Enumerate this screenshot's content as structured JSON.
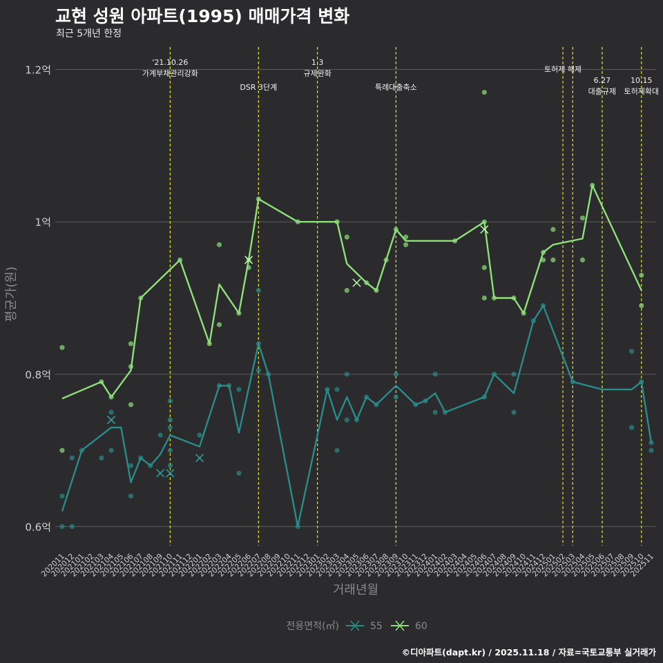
{
  "title": "교현 성원 아파트(1995) 매매가격 변화",
  "subtitle": "최근 5개년 한정",
  "caption": "©디아파트(dapt.kr) / 2025.11.18 / 자료=국토교통부 실거래가",
  "colors": {
    "background": "#2b2b2d",
    "grid": "#5c5c5c",
    "series55": "#2a8c8a",
    "series60": "#8fe07a",
    "event_line": "#d4d42a",
    "axis_text": "#cfcfcf",
    "axis_title": "#8a8a8a"
  },
  "chart_data": {
    "type": "line",
    "title": "교현 성원 아파트(1995) 매매가격 변화",
    "xlabel": "거래년월",
    "ylabel": "평균가(원)",
    "ylim": [
      0.575,
      1.235
    ],
    "y_ticks": [
      {
        "value": 0.6,
        "label": "0.6억"
      },
      {
        "value": 0.8,
        "label": "0.8억"
      },
      {
        "value": 1.0,
        "label": "1억"
      },
      {
        "value": 1.2,
        "label": "1.2억"
      }
    ],
    "x_ticks": [
      "202011",
      "202012",
      "202101",
      "202102",
      "202103",
      "202104",
      "202105",
      "202106",
      "202107",
      "202108",
      "202109",
      "202110",
      "202111",
      "202112",
      "202201",
      "202202",
      "202203",
      "202204",
      "202205",
      "202206",
      "202207",
      "202208",
      "202209",
      "202210",
      "202211",
      "202212",
      "202301",
      "202302",
      "202303",
      "202304",
      "202305",
      "202306",
      "202307",
      "202308",
      "202309",
      "202310",
      "202311",
      "202312",
      "202401",
      "202402",
      "202403",
      "202404",
      "202405",
      "202406",
      "202407",
      "202408",
      "202409",
      "202410",
      "202411",
      "202412",
      "202501",
      "202502",
      "202503",
      "202504",
      "202505",
      "202506",
      "202507",
      "202508",
      "202509",
      "202510",
      "202511"
    ],
    "legend": {
      "title": "전용면적(㎡)",
      "position": "bottom",
      "entries": [
        "55",
        "60"
      ]
    },
    "events": [
      {
        "x": 11,
        "lines": [
          "'21.10.26",
          "가계부채관리강화"
        ],
        "row": 0
      },
      {
        "x": 20,
        "lines": [
          "DSR 3단계"
        ],
        "row": 2
      },
      {
        "x": 26,
        "lines": [
          "1.3",
          "규제완화"
        ],
        "row": 0
      },
      {
        "x": 34,
        "lines": [
          "특례대출축소"
        ],
        "row": 2
      },
      {
        "x": 51,
        "lines": [
          "토허제 해제"
        ],
        "row": 1
      },
      {
        "x": 52,
        "lines": [],
        "row": 1
      },
      {
        "x": 55,
        "lines": [
          "6.27",
          "대출규제"
        ],
        "row": 3
      },
      {
        "x": 59,
        "lines": [
          "10.15",
          "토허제확대"
        ],
        "row": 3
      }
    ],
    "series": [
      {
        "name": "55",
        "line": [
          [
            0,
            0.62
          ],
          [
            2,
            0.7
          ],
          [
            5,
            0.73
          ],
          [
            6,
            0.73
          ],
          [
            7,
            0.658
          ],
          [
            8,
            0.69
          ],
          [
            9,
            0.68
          ],
          [
            10,
            0.695
          ],
          [
            11,
            0.72
          ],
          [
            14,
            0.705
          ],
          [
            16,
            0.785
          ],
          [
            17,
            0.785
          ],
          [
            18,
            0.723
          ],
          [
            20,
            0.84
          ],
          [
            21,
            0.8
          ],
          [
            24,
            0.6
          ],
          [
            27,
            0.78
          ],
          [
            28,
            0.74
          ],
          [
            29,
            0.77
          ],
          [
            30,
            0.74
          ],
          [
            31,
            0.77
          ],
          [
            32,
            0.76
          ],
          [
            34,
            0.785
          ],
          [
            36,
            0.76
          ],
          [
            37,
            0.765
          ],
          [
            38,
            0.775
          ],
          [
            39,
            0.75
          ],
          [
            43,
            0.77
          ],
          [
            44,
            0.8
          ],
          [
            46,
            0.775
          ],
          [
            48,
            0.87
          ],
          [
            49,
            0.89
          ],
          [
            52,
            0.79
          ],
          [
            55,
            0.78
          ],
          [
            58,
            0.78
          ],
          [
            59,
            0.79
          ],
          [
            60,
            0.71
          ]
        ],
        "points": [
          [
            0,
            0.64
          ],
          [
            0,
            0.6
          ],
          [
            1,
            0.69
          ],
          [
            1,
            0.6
          ],
          [
            2,
            0.7
          ],
          [
            5,
            0.75
          ],
          [
            5,
            0.7
          ],
          [
            4,
            0.69
          ],
          [
            7,
            0.68
          ],
          [
            7,
            0.64
          ],
          [
            8,
            0.69
          ],
          [
            9,
            0.68
          ],
          [
            10,
            0.72
          ],
          [
            11,
            0.765
          ],
          [
            11,
            0.74
          ],
          [
            11,
            0.73
          ],
          [
            11,
            0.7
          ],
          [
            11,
            0.68
          ],
          [
            14,
            0.72
          ],
          [
            16,
            0.785
          ],
          [
            17,
            0.785
          ],
          [
            18,
            0.78
          ],
          [
            18,
            0.67
          ],
          [
            20,
            0.91
          ],
          [
            20,
            0.84
          ],
          [
            20,
            0.805
          ],
          [
            21,
            0.8
          ],
          [
            24,
            0.6
          ],
          [
            27,
            0.78
          ],
          [
            28,
            0.78
          ],
          [
            28,
            0.7
          ],
          [
            29,
            0.8
          ],
          [
            29,
            0.74
          ],
          [
            30,
            0.74
          ],
          [
            31,
            0.77
          ],
          [
            32,
            0.76
          ],
          [
            34,
            0.8
          ],
          [
            34,
            0.77
          ],
          [
            36,
            0.76
          ],
          [
            37,
            0.765
          ],
          [
            38,
            0.8
          ],
          [
            38,
            0.75
          ],
          [
            39,
            0.75
          ],
          [
            43,
            0.77
          ],
          [
            44,
            0.8
          ],
          [
            46,
            0.8
          ],
          [
            46,
            0.75
          ],
          [
            48,
            0.87
          ],
          [
            49,
            0.89
          ],
          [
            52,
            0.79
          ],
          [
            58,
            0.83
          ],
          [
            58,
            0.73
          ],
          [
            59,
            0.79
          ],
          [
            60,
            0.7
          ],
          [
            60,
            0.71
          ]
        ],
        "cancelled": [
          [
            5,
            0.74
          ],
          [
            10,
            0.67
          ],
          [
            11,
            0.67
          ],
          [
            14,
            0.69
          ]
        ]
      },
      {
        "name": "60",
        "line": [
          [
            0,
            0.768
          ],
          [
            4,
            0.79
          ],
          [
            5,
            0.77
          ],
          [
            7,
            0.805
          ],
          [
            8,
            0.9
          ],
          [
            12,
            0.95
          ],
          [
            15,
            0.84
          ],
          [
            16,
            0.918
          ],
          [
            18,
            0.88
          ],
          [
            19,
            0.95
          ],
          [
            20,
            1.03
          ],
          [
            24,
            1.0
          ],
          [
            28,
            1.0
          ],
          [
            29,
            0.945
          ],
          [
            31,
            0.92
          ],
          [
            32,
            0.91
          ],
          [
            34,
            0.99
          ],
          [
            35,
            0.975
          ],
          [
            40,
            0.975
          ],
          [
            43,
            1.0
          ],
          [
            44,
            0.9
          ],
          [
            46,
            0.9
          ],
          [
            47,
            0.88
          ],
          [
            49,
            0.96
          ],
          [
            50,
            0.97
          ],
          [
            53,
            0.978
          ],
          [
            54,
            1.048
          ],
          [
            59,
            0.91
          ]
        ],
        "points": [
          [
            0,
            0.835
          ],
          [
            0,
            0.7
          ],
          [
            4,
            0.79
          ],
          [
            5,
            0.77
          ],
          [
            7,
            0.84
          ],
          [
            7,
            0.81
          ],
          [
            7,
            0.76
          ],
          [
            8,
            0.9
          ],
          [
            12,
            0.95
          ],
          [
            15,
            0.84
          ],
          [
            16,
            0.97
          ],
          [
            16,
            0.865
          ],
          [
            18,
            0.88
          ],
          [
            19,
            0.94
          ],
          [
            19,
            0.95
          ],
          [
            20,
            1.03
          ],
          [
            24,
            1.0
          ],
          [
            28,
            1.0
          ],
          [
            29,
            0.98
          ],
          [
            29,
            0.91
          ],
          [
            31,
            0.92
          ],
          [
            32,
            0.91
          ],
          [
            33,
            0.95
          ],
          [
            34,
            0.99
          ],
          [
            35,
            0.98
          ],
          [
            35,
            0.97
          ],
          [
            40,
            0.975
          ],
          [
            43,
            1.17
          ],
          [
            43,
            1.0
          ],
          [
            43,
            0.94
          ],
          [
            43,
            0.9
          ],
          [
            44,
            0.9
          ],
          [
            46,
            0.9
          ],
          [
            47,
            0.88
          ],
          [
            49,
            0.96
          ],
          [
            49,
            0.95
          ],
          [
            50,
            0.99
          ],
          [
            50,
            0.95
          ],
          [
            53,
            1.005
          ],
          [
            53,
            0.95
          ],
          [
            54,
            1.048
          ],
          [
            59,
            0.93
          ],
          [
            59,
            0.89
          ]
        ],
        "cancelled": [
          [
            19,
            0.95
          ],
          [
            30,
            0.92
          ],
          [
            43,
            0.99
          ]
        ]
      }
    ]
  }
}
